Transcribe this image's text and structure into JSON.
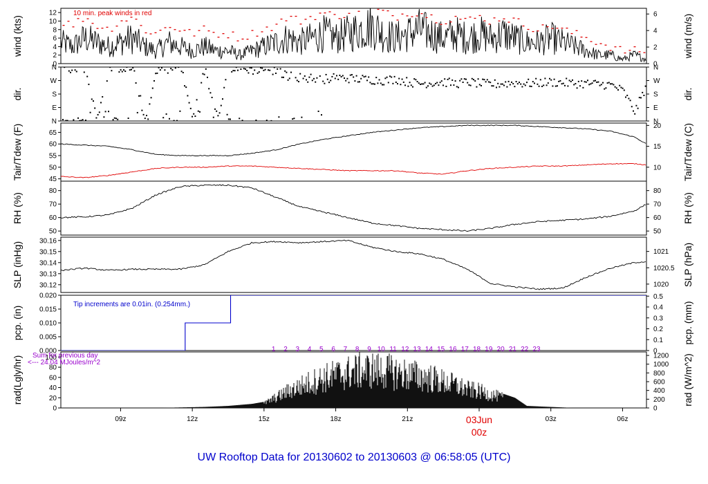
{
  "title": "UW Rooftop Data for 20130602  to  20130603 @ 06:58:05  (UTC)",
  "colors": {
    "line": "#000000",
    "peak": "#e00000",
    "dew": "#e00000",
    "precip": "#0000cc",
    "annot_purple": "#9900cc",
    "title": "#0000cc"
  },
  "x_axis": {
    "ticks": [
      "09z",
      "12z",
      "15z",
      "18z",
      "21z",
      "03z",
      "06z"
    ],
    "date_label": "03Jun",
    "date_sub": "00z"
  },
  "chart_data": [
    {
      "type": "line",
      "panel": "wind",
      "ylabel_left": "wind (kts)",
      "ylabel_right": "wind (m/s)",
      "left_ticks": [
        "0",
        "2",
        "4",
        "6",
        "8",
        "10",
        "12"
      ],
      "right_ticks": [
        "0",
        "2",
        "4",
        "6"
      ],
      "ylim": [
        0,
        13
      ],
      "annotation": "10 min. peak winds in red",
      "series": [
        {
          "role": "wind",
          "x": [
            6.5,
            7,
            7.5,
            8,
            8.5,
            9,
            9.5,
            10,
            10.5,
            11,
            11.5,
            12,
            12.5,
            13,
            13.5,
            14,
            14.5,
            15,
            15.5,
            16,
            16.5,
            17,
            17.5,
            18,
            18.5,
            19,
            19.5,
            20,
            20.5,
            21,
            21.5,
            22,
            22.5,
            23,
            23.5,
            24,
            24.5,
            25,
            25.5,
            26,
            26.5,
            27,
            27.5,
            28,
            28.5,
            29,
            29.5,
            30,
            30.5,
            31
          ],
          "values": [
            5,
            4,
            6,
            5,
            4,
            5,
            6,
            4,
            3,
            5,
            4,
            3,
            4,
            3,
            3,
            2,
            3,
            4,
            5,
            6,
            5,
            6,
            7,
            6,
            7,
            8,
            9,
            7,
            6,
            7,
            8,
            7,
            6,
            7,
            6,
            7,
            6,
            7,
            6,
            5,
            5,
            6,
            5,
            4,
            3,
            2,
            2,
            1,
            2,
            1
          ]
        },
        {
          "role": "peak",
          "x": [
            6.5,
            7,
            7.5,
            8,
            8.5,
            9,
            9.5,
            10,
            10.5,
            11,
            11.5,
            12,
            12.5,
            13,
            13.5,
            14,
            14.5,
            15,
            15.5,
            16,
            16.5,
            17,
            17.5,
            18,
            18.5,
            19,
            19.5,
            20,
            20.5,
            21,
            21.5,
            22,
            22.5,
            23,
            23.5,
            24,
            24.5,
            25,
            25.5,
            26,
            26.5,
            27,
            27.5,
            28,
            28.5,
            29,
            29.5,
            30,
            30.5,
            31
          ],
          "values": [
            10,
            9,
            11,
            9,
            8,
            10,
            11,
            8,
            7,
            9,
            8,
            7,
            8,
            7,
            7,
            6,
            7,
            8,
            9,
            11,
            10,
            11,
            12,
            11,
            12,
            13,
            13,
            12,
            11,
            12,
            12,
            11,
            10,
            11,
            10,
            11,
            10,
            11,
            10,
            9,
            8,
            9,
            8,
            7,
            6,
            5,
            4,
            3,
            3,
            3
          ]
        }
      ]
    },
    {
      "type": "scatter",
      "panel": "dir",
      "ylabel_left": "dir.",
      "ylabel_right": "dir.",
      "left_ticks": [
        "N",
        "E",
        "S",
        "W",
        "N"
      ],
      "right_ticks": [
        "N",
        "E",
        "S",
        "W",
        "N"
      ],
      "ylim": [
        0,
        360
      ],
      "series": [
        {
          "x": [
            6.5,
            7,
            7.5,
            8,
            8.5,
            9,
            9.5,
            10,
            10.5,
            11,
            11.5,
            12,
            12.5,
            13,
            13.5,
            14,
            14.5,
            15,
            15.5,
            16,
            16.5,
            17,
            17.5,
            18,
            18.5,
            19,
            19.5,
            20,
            20.5,
            21,
            21.5,
            22,
            22.5,
            23,
            23.5,
            24,
            24.5,
            25,
            25.5,
            26,
            26.5,
            27,
            27.5,
            28,
            28.5,
            29,
            29.5,
            30,
            30.5,
            31
          ],
          "values": [
            355,
            350,
            355,
            5,
            350,
            355,
            350,
            5,
            345,
            350,
            355,
            10,
            350,
            5,
            355,
            350,
            340,
            350,
            330,
            300,
            290,
            285,
            280,
            290,
            285,
            280,
            275,
            270,
            280,
            260,
            250,
            255,
            260,
            250,
            260,
            250,
            245,
            250,
            255,
            250,
            255,
            260,
            255,
            250,
            250,
            245,
            240,
            200,
            60,
            250
          ]
        }
      ]
    },
    {
      "type": "line",
      "panel": "temp",
      "ylabel_left": "Tair/Tdew (F)",
      "ylabel_right": "Tair/Tdew (C)",
      "left_ticks": [
        "45",
        "50",
        "55",
        "60",
        "65"
      ],
      "right_ticks": [
        "10",
        "15",
        "20"
      ],
      "ylim": [
        44,
        69
      ],
      "series": [
        {
          "role": "tair",
          "x": [
            6.5,
            7.5,
            8.5,
            9.5,
            10.5,
            11.5,
            12.5,
            13.5,
            14.5,
            15.5,
            16.5,
            17.5,
            18.5,
            19.5,
            20.5,
            21.5,
            22.5,
            23.5,
            24.5,
            25.5,
            26.5,
            27.5,
            28.5,
            29.5,
            30.5,
            31
          ],
          "values": [
            60,
            59.5,
            59,
            57.5,
            55.5,
            55,
            55,
            55,
            56,
            57.5,
            60,
            62,
            63.5,
            65,
            66,
            67,
            67.5,
            68,
            68,
            68,
            67.5,
            67,
            66.5,
            65.5,
            63,
            60
          ]
        },
        {
          "role": "tdew",
          "x": [
            6.5,
            7.5,
            8.5,
            9.5,
            10.5,
            11.5,
            12.5,
            13.5,
            14.5,
            15.5,
            16.5,
            17.5,
            18.5,
            19.5,
            20.5,
            21.5,
            22.5,
            23.5,
            24.5,
            25.5,
            26.5,
            27.5,
            28.5,
            29.5,
            30.5,
            31
          ],
          "values": [
            46,
            45.5,
            46.5,
            48,
            49.5,
            50,
            50,
            50.5,
            50.5,
            50,
            49.5,
            49,
            48.5,
            48.5,
            48.5,
            47.5,
            47,
            48.5,
            49.5,
            50,
            50.5,
            50.5,
            51,
            51.5,
            51.5,
            51
          ]
        }
      ]
    },
    {
      "type": "line",
      "panel": "rh",
      "ylabel_left": "RH (%)",
      "ylabel_right": "RH (%)",
      "left_ticks": [
        "50",
        "60",
        "70",
        "80"
      ],
      "right_ticks": [
        "50",
        "60",
        "70",
        "80"
      ],
      "ylim": [
        47,
        87
      ],
      "series": [
        {
          "x": [
            6.5,
            7.5,
            8.5,
            9.5,
            10.5,
            11.5,
            12.5,
            13.5,
            14.5,
            15.5,
            16.5,
            17.5,
            18.5,
            19.5,
            20.5,
            21.5,
            22.5,
            23.5,
            24.5,
            25.5,
            26.5,
            27.5,
            28.5,
            29.5,
            30.5,
            31
          ],
          "values": [
            60,
            60.5,
            62,
            67,
            77,
            83,
            84,
            84,
            82,
            75,
            68,
            64,
            60,
            56,
            54,
            52,
            51,
            50,
            52,
            55,
            57,
            58,
            59,
            61,
            65,
            70
          ]
        }
      ]
    },
    {
      "type": "line",
      "panel": "slp",
      "ylabel_left": "SLP (inHg)",
      "ylabel_right": "SLP (hPa)",
      "left_ticks": [
        "30.12",
        "30.13",
        "30.14",
        "30.15",
        "30.16"
      ],
      "right_ticks": [
        "1020",
        "1020.5",
        "1021"
      ],
      "ylim": [
        30.113,
        30.163
      ],
      "series": [
        {
          "x": [
            6.5,
            7.5,
            8.5,
            9.5,
            10.5,
            11.5,
            12.5,
            13.5,
            14.5,
            15.5,
            16.5,
            17.5,
            18.5,
            19.5,
            20.5,
            21.5,
            22.5,
            23.5,
            24.5,
            25.5,
            26.5,
            27.5,
            28.5,
            29.5,
            30.5,
            31
          ],
          "values": [
            30.133,
            30.135,
            30.133,
            30.134,
            30.134,
            30.134,
            30.138,
            30.15,
            30.158,
            30.159,
            30.158,
            30.159,
            30.16,
            30.154,
            30.15,
            30.148,
            30.143,
            30.134,
            30.121,
            30.118,
            30.116,
            30.117,
            30.127,
            30.135,
            30.14,
            30.141
          ]
        }
      ]
    },
    {
      "type": "line",
      "panel": "pcp",
      "ylabel_left": "pcp. (in)",
      "ylabel_right": "pcp. (mm)",
      "left_ticks": [
        "0.000",
        "0.005",
        "0.010",
        "0.015",
        "0.020"
      ],
      "right_ticks": [
        "0",
        "0.1",
        "0.2",
        "0.3",
        "0.4",
        "0.5"
      ],
      "ylim": [
        0,
        0.02
      ],
      "annotation": "Tip increments are 0.01in. (0.254mm.)",
      "series": [
        {
          "x": [
            6.5,
            11.7,
            11.7,
            13.6,
            13.6,
            31
          ],
          "values": [
            0,
            0,
            0.01,
            0.01,
            0.02,
            0.02
          ]
        }
      ]
    },
    {
      "type": "area",
      "panel": "rad",
      "ylabel_left": "rad(Lgly/hr)",
      "ylabel_right": "rad (W/m^2)",
      "left_ticks": [
        "0",
        "20",
        "40",
        "60",
        "80",
        "100"
      ],
      "right_ticks": [
        "0",
        "200",
        "400",
        "600",
        "800",
        "1000",
        "1200"
      ],
      "ylim": [
        0,
        110
      ],
      "annotation_line1": "Sum for previous day",
      "annotation_line2": "<--- 24.04 MJoules/m^2",
      "hour_markers": [
        "1",
        "2",
        "3",
        "4",
        "5",
        "6",
        "7",
        "8",
        "9",
        "10",
        "11",
        "12",
        "13",
        "14",
        "15",
        "16",
        "17",
        "18",
        "19",
        "20",
        "21",
        "22",
        "23"
      ],
      "series": [
        {
          "x": [
            6.5,
            10.5,
            11.5,
            12.5,
            13.5,
            14.5,
            15.0,
            15.5,
            16.0,
            16.5,
            17.0,
            17.5,
            18.0,
            18.5,
            19.0,
            19.5,
            20.0,
            20.5,
            21.0,
            21.5,
            22.0,
            22.5,
            23.0,
            23.5,
            24.0,
            24.5,
            25.0,
            25.5,
            26.0,
            26.5,
            27.0,
            28.0,
            31
          ],
          "values": [
            0,
            0,
            1,
            2,
            4,
            8,
            12,
            28,
            45,
            58,
            70,
            80,
            88,
            95,
            100,
            102,
            100,
            95,
            90,
            85,
            80,
            70,
            62,
            50,
            45,
            36,
            28,
            20,
            4,
            3,
            2,
            0,
            0
          ]
        }
      ]
    }
  ]
}
